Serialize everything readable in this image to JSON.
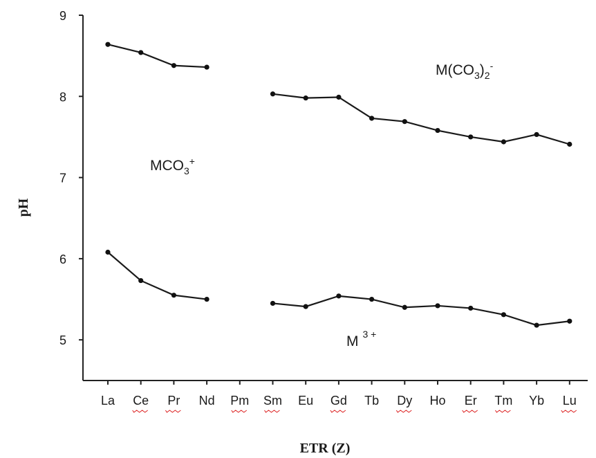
{
  "chart_data": {
    "type": "line",
    "xlabel": "ETR (Z)",
    "ylabel": "pH",
    "ylim": [
      4.5,
      9
    ],
    "yticks": [
      "5",
      "6",
      "7",
      "8",
      "9"
    ],
    "categories": [
      "La",
      "Ce",
      "Pr",
      "Nd",
      "Pm",
      "Sm",
      "Eu",
      "Gd",
      "Tb",
      "Dy",
      "Ho",
      "Er",
      "Tm",
      "Yb",
      "Lu"
    ],
    "underlined_categories": [
      "Ce",
      "Pr",
      "Pm",
      "Sm",
      "Gd",
      "Dy",
      "Er",
      "Tm",
      "Lu"
    ],
    "series": [
      {
        "segment": "upper-left",
        "x": [
          "La",
          "Ce",
          "Pr",
          "Nd"
        ],
        "values": [
          8.64,
          8.54,
          8.38,
          8.36
        ]
      },
      {
        "segment": "upper-right",
        "x": [
          "Sm",
          "Eu",
          "Gd",
          "Tb",
          "Dy",
          "Ho",
          "Er",
          "Tm",
          "Yb",
          "Lu"
        ],
        "values": [
          8.03,
          7.98,
          7.99,
          7.73,
          7.69,
          7.58,
          7.5,
          7.44,
          7.53,
          7.41
        ]
      },
      {
        "segment": "lower-left",
        "x": [
          "La",
          "Ce",
          "Pr",
          "Nd"
        ],
        "values": [
          6.08,
          5.73,
          5.55,
          5.5
        ]
      },
      {
        "segment": "lower-right",
        "x": [
          "Sm",
          "Eu",
          "Gd",
          "Tb",
          "Dy",
          "Ho",
          "Er",
          "Tm",
          "Yb",
          "Lu"
        ],
        "values": [
          5.45,
          5.41,
          5.54,
          5.5,
          5.4,
          5.42,
          5.39,
          5.31,
          5.18,
          5.23
        ]
      }
    ],
    "annotations": {
      "upper_region": {
        "text": "M(CO",
        "sub": "3",
        "close": ")",
        "sub2": "2",
        "sup": "-"
      },
      "middle_region": {
        "text": "MCO",
        "sub": "3",
        "sup": "+"
      },
      "lower_region": {
        "text": "M",
        "sup": "3 +"
      }
    },
    "grid": false,
    "legend": "none"
  }
}
